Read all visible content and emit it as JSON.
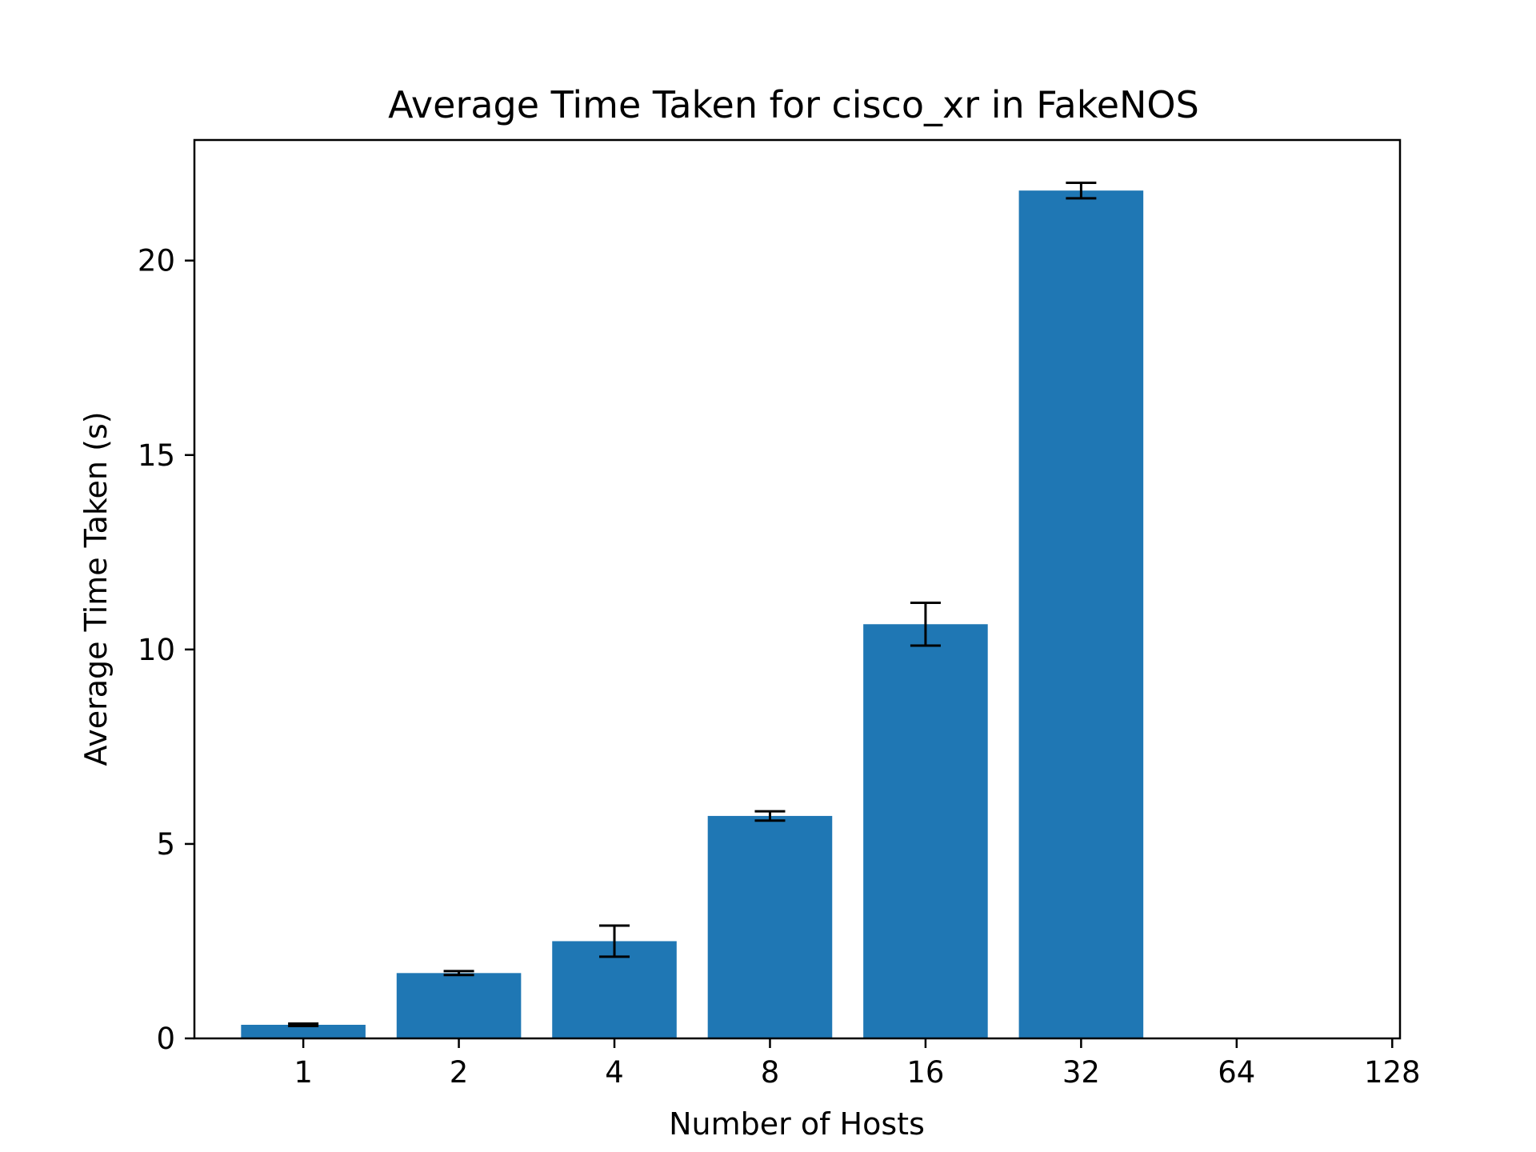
{
  "chart_data": {
    "type": "bar",
    "title": "Average Time Taken for cisco_xr in FakeNOS",
    "xlabel": "Number of Hosts",
    "ylabel": "Average Time Taken (s)",
    "categories": [
      "1",
      "2",
      "4",
      "8",
      "16",
      "32",
      "64",
      "128"
    ],
    "values": [
      0.35,
      1.68,
      2.5,
      5.72,
      10.65,
      21.8,
      null,
      null
    ],
    "error": [
      0.03,
      0.05,
      0.4,
      0.12,
      0.55,
      0.2,
      null,
      null
    ],
    "ylim": [
      0,
      23.1
    ],
    "yticks": [
      0,
      5,
      10,
      15,
      20
    ],
    "grid": false,
    "bar_color": "#1f77b4",
    "error_color": "#000000"
  }
}
